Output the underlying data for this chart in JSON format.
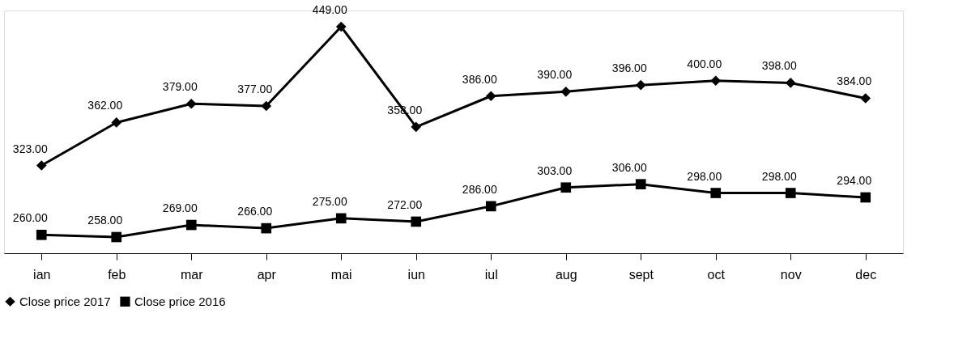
{
  "chart_data": {
    "type": "line",
    "categories": [
      "ian",
      "feb",
      "mar",
      "apr",
      "mai",
      "iun",
      "iul",
      "aug",
      "sept",
      "oct",
      "nov",
      "dec"
    ],
    "series": [
      {
        "name": "Close price 2017",
        "color": "#000000",
        "marker": "diamond",
        "values": [
          323,
          362,
          379,
          377,
          449,
          358,
          386,
          390,
          396,
          400,
          398,
          384
        ],
        "value_labels": [
          "323.00",
          "362.00",
          "379.00",
          "377.00",
          "449.00",
          "358.00",
          "386.00",
          "390.00",
          "396.00",
          "400.00",
          "398.00",
          "384.00"
        ]
      },
      {
        "name": "Close price 2016",
        "color": "#000000",
        "marker": "square",
        "values": [
          260,
          258,
          269,
          266,
          275,
          272,
          286,
          303,
          306,
          298,
          298,
          294
        ],
        "value_labels": [
          "260.00",
          "258.00",
          "269.00",
          "266.00",
          "275.00",
          "272.00",
          "286.00",
          "303.00",
          "306.00",
          "298.00",
          "298.00",
          "294.00"
        ]
      }
    ],
    "legend": "bottom",
    "grid": false,
    "tick_labels": "x"
  }
}
